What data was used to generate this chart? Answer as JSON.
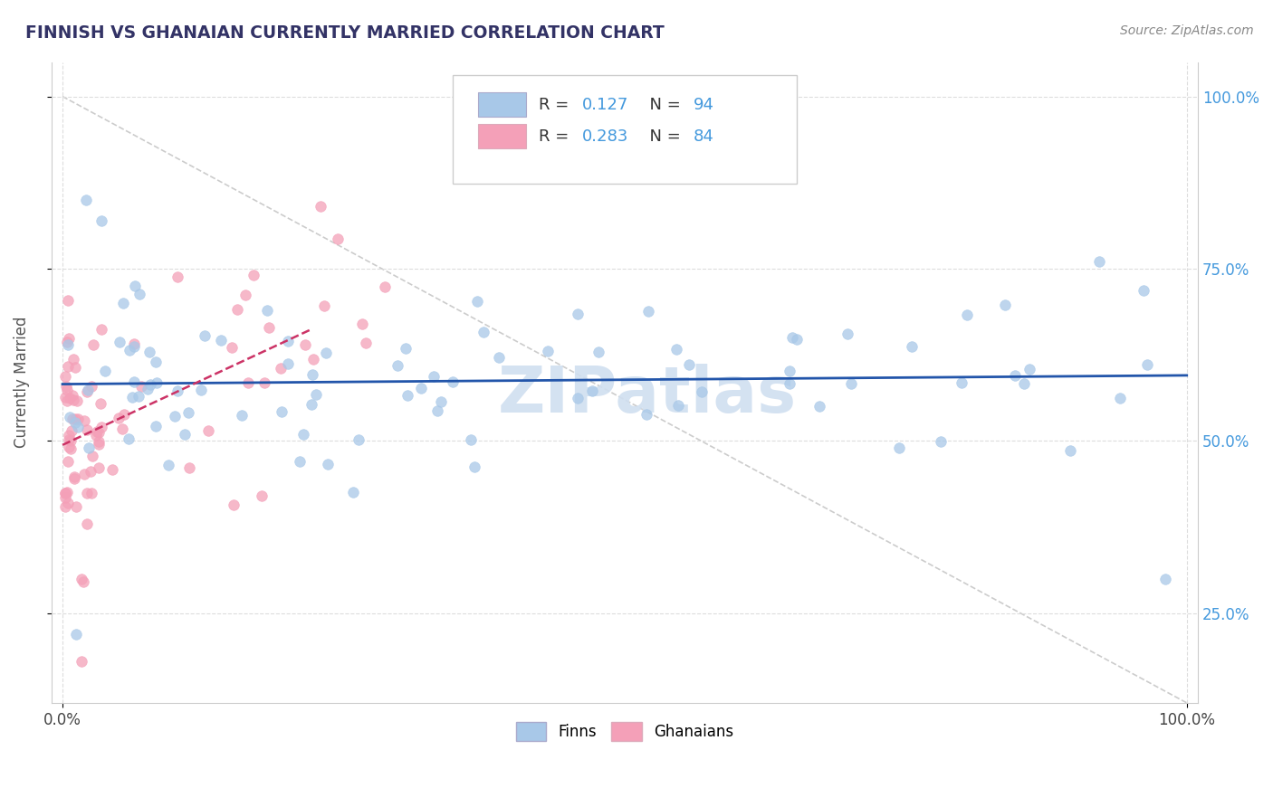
{
  "title": "FINNISH VS GHANAIAN CURRENTLY MARRIED CORRELATION CHART",
  "source": "Source: ZipAtlas.com",
  "ylabel": "Currently Married",
  "finn_R": 0.127,
  "finn_N": 94,
  "ghana_R": 0.283,
  "ghana_N": 84,
  "finn_color": "#a8c8e8",
  "ghana_color": "#f4a0b8",
  "finn_line_color": "#2255aa",
  "ghana_line_color": "#cc3366",
  "legend_finn_label": "Finns",
  "legend_ghana_label": "Ghanaians",
  "watermark_text": "ZIPatlas",
  "watermark_color": "#d0dff0",
  "title_color": "#333366",
  "source_color": "#888888",
  "right_tick_color": "#4499dd",
  "legend_R_N_color": "#4499dd",
  "legend_label_color": "#333333",
  "grid_color": "#dddddd",
  "x_min": 0.0,
  "x_max": 1.0,
  "y_min": 0.12,
  "y_max": 1.05,
  "y_ticks": [
    0.25,
    0.5,
    0.75,
    1.0
  ],
  "x_ticks": [
    0.0,
    1.0
  ],
  "diag_line_color": "#cccccc"
}
